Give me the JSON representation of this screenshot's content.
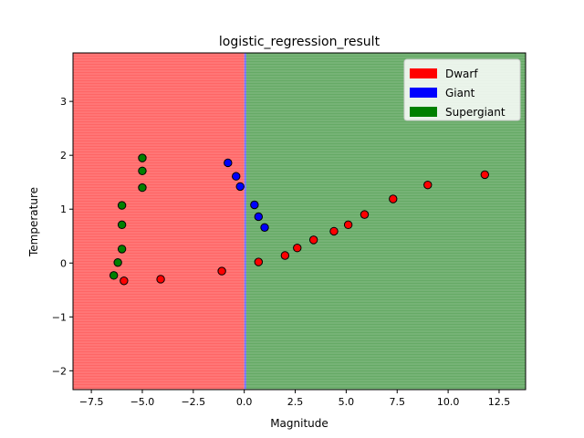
{
  "chart_data": {
    "type": "scatter",
    "title": "logistic_regression_result",
    "xlabel": "Magnitude",
    "ylabel": "Temperature",
    "xlim": [
      -8.4,
      13.8
    ],
    "ylim": [
      -2.35,
      3.9
    ],
    "xticks": [
      -7.5,
      -5.0,
      -2.5,
      0.0,
      2.5,
      5.0,
      7.5,
      10.0,
      12.5
    ],
    "xtick_labels": [
      "−7.5",
      "−5.0",
      "−2.5",
      "0.0",
      "2.5",
      "5.0",
      "7.5",
      "10.0",
      "12.5"
    ],
    "yticks": [
      -2,
      -1,
      0,
      1,
      2,
      3
    ],
    "ytick_labels": [
      "−2",
      "−1",
      "0",
      "1",
      "2",
      "3"
    ],
    "legend_position": "top-right",
    "background_regions": [
      {
        "class": "Dwarf",
        "x_from": -8.4,
        "x_to": 0.0,
        "color": "#ff6666"
      },
      {
        "class": "Giant",
        "x_from": 0.0,
        "x_to": 0.1,
        "color": "#6b6bff"
      },
      {
        "class": "Supergiant",
        "x_from": 0.1,
        "x_to": 13.8,
        "color": "#66aa66"
      }
    ],
    "series": [
      {
        "name": "Dwarf",
        "color": "#ff0000",
        "points": [
          [
            -5.9,
            -0.33
          ],
          [
            -4.1,
            -0.3
          ],
          [
            -1.1,
            -0.15
          ],
          [
            0.7,
            0.02
          ],
          [
            2.0,
            0.14
          ],
          [
            2.6,
            0.28
          ],
          [
            3.4,
            0.43
          ],
          [
            4.4,
            0.59
          ],
          [
            5.1,
            0.71
          ],
          [
            5.9,
            0.9
          ],
          [
            7.3,
            1.19
          ],
          [
            9.0,
            1.45
          ],
          [
            11.8,
            1.64
          ]
        ]
      },
      {
        "name": "Giant",
        "color": "#0000ff",
        "points": [
          [
            -0.8,
            1.86
          ],
          [
            -0.4,
            1.61
          ],
          [
            -0.2,
            1.42
          ],
          [
            0.5,
            1.08
          ],
          [
            0.7,
            0.86
          ],
          [
            1.0,
            0.66
          ]
        ]
      },
      {
        "name": "Supergiant",
        "color": "#008000",
        "points": [
          [
            -5.0,
            1.95
          ],
          [
            -5.0,
            1.71
          ],
          [
            -5.0,
            1.4
          ],
          [
            -6.0,
            1.07
          ],
          [
            -6.0,
            0.71
          ],
          [
            -6.0,
            0.26
          ],
          [
            -6.2,
            0.01
          ],
          [
            -6.4,
            -0.23
          ]
        ]
      }
    ]
  }
}
